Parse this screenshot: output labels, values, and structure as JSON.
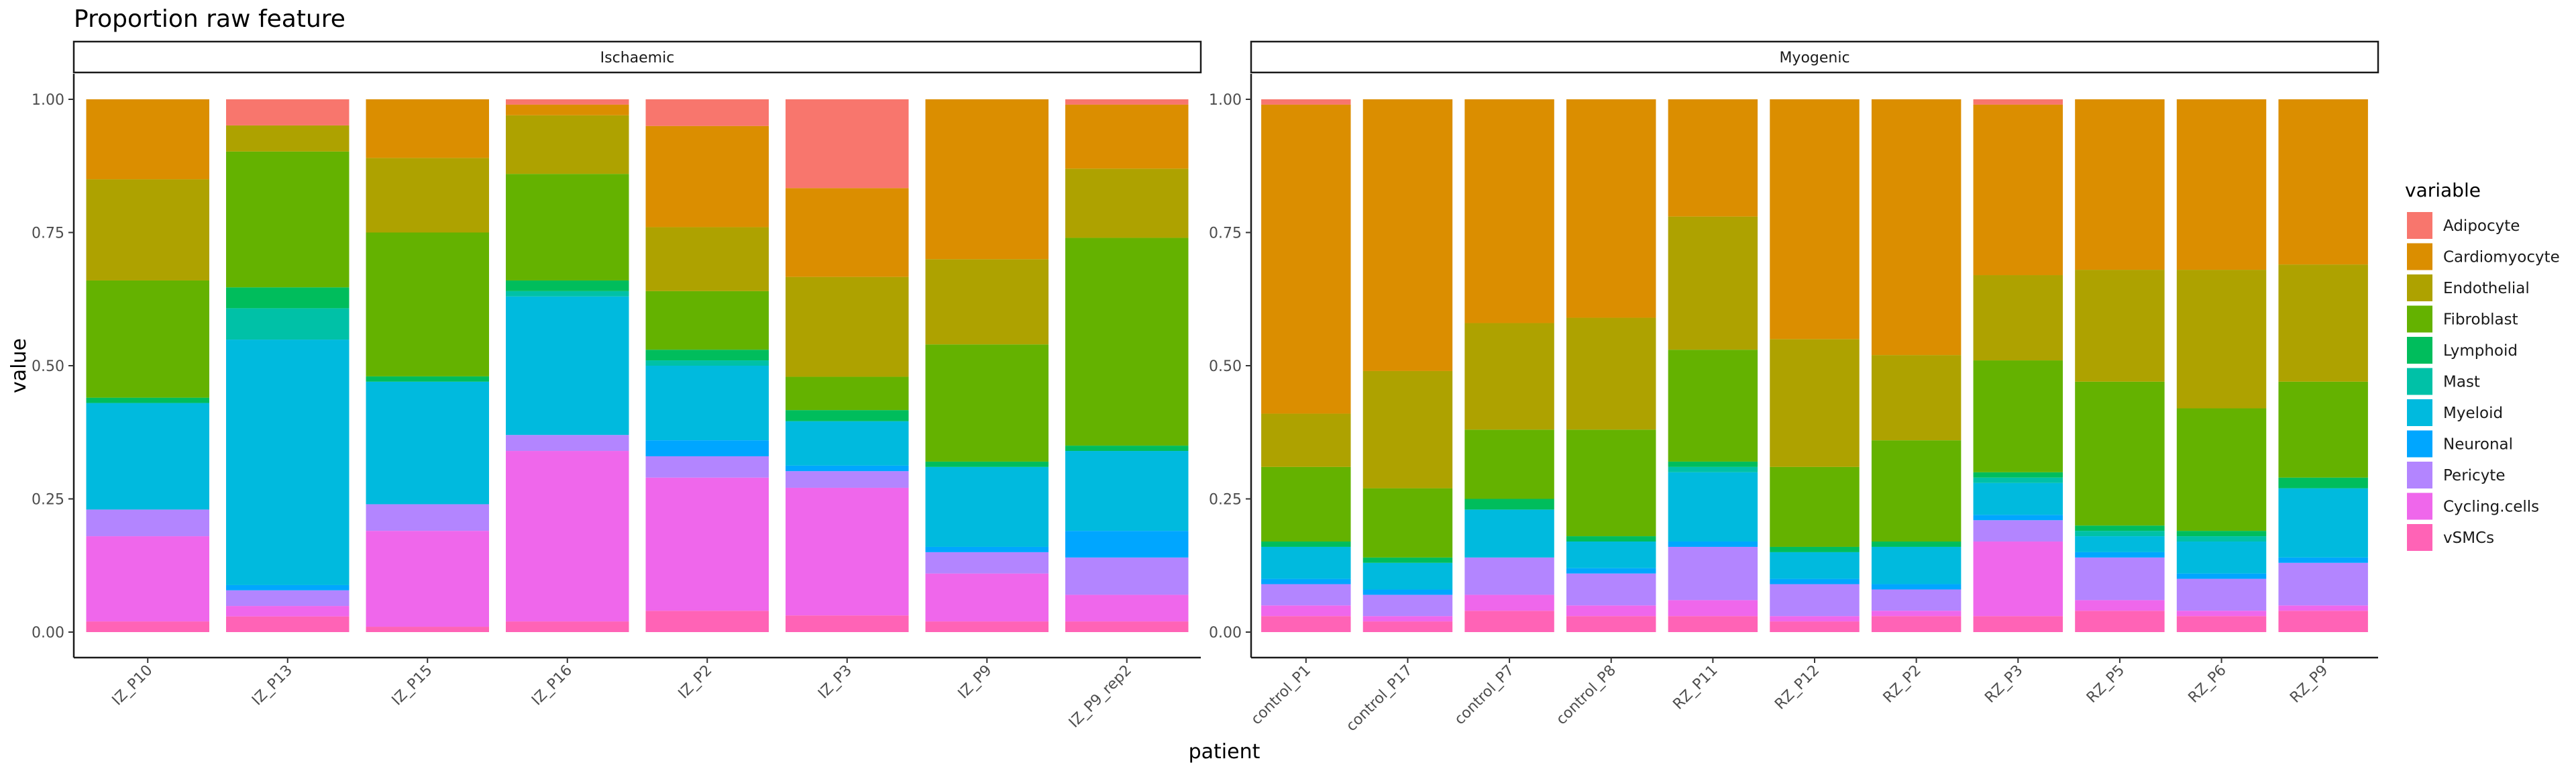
{
  "chart_data": {
    "type": "bar",
    "stacked": true,
    "title": "Proportion raw feature",
    "xlabel": "patient",
    "ylabel": "value",
    "ylim": [
      0,
      1
    ],
    "yticks": [
      "0.00",
      "0.25",
      "0.50",
      "0.75",
      "1.00"
    ],
    "legend_title": "variable",
    "legend_position": "right",
    "grid": false,
    "variables": [
      "Adipocyte",
      "Cardiomyocyte",
      "Endothelial",
      "Fibroblast",
      "Lymphoid",
      "Mast",
      "Myeloid",
      "Neuronal",
      "Pericyte",
      "Cycling.cells",
      "vSMCs"
    ],
    "colors": {
      "Adipocyte": "#F8766D",
      "Cardiomyocyte": "#DB8E00",
      "Endothelial": "#AEA200",
      "Fibroblast": "#64B200",
      "Lymphoid": "#00BD5C",
      "Mast": "#00C1A7",
      "Myeloid": "#00BADE",
      "Neuronal": "#00A6FF",
      "Pericyte": "#B385FF",
      "Cycling.cells": "#EF67EB",
      "vSMCs": "#FF63B6"
    },
    "panels": [
      {
        "name": "Ischaemic",
        "categories": [
          "IZ_P10",
          "IZ_P13",
          "IZ_P15",
          "IZ_P16",
          "IZ_P2",
          "IZ_P3",
          "IZ_P9",
          "IZ_P9_rep2"
        ],
        "values": {
          "Adipocyte": [
            0.0,
            0.05,
            0.0,
            0.01,
            0.05,
            0.16,
            0.0,
            0.01
          ],
          "Cardiomyocyte": [
            0.15,
            0.0,
            0.11,
            0.02,
            0.19,
            0.16,
            0.3,
            0.12
          ],
          "Endothelial": [
            0.19,
            0.05,
            0.14,
            0.11,
            0.12,
            0.18,
            0.16,
            0.13
          ],
          "Fibroblast": [
            0.22,
            0.26,
            0.27,
            0.2,
            0.11,
            0.06,
            0.22,
            0.39
          ],
          "Lymphoid": [
            0.01,
            0.04,
            0.01,
            0.02,
            0.02,
            0.02,
            0.01,
            0.01
          ],
          "Mast": [
            0.0,
            0.06,
            0.0,
            0.01,
            0.01,
            0.0,
            0.0,
            0.0
          ],
          "Myeloid": [
            0.2,
            0.47,
            0.23,
            0.26,
            0.14,
            0.08,
            0.15,
            0.15
          ],
          "Neuronal": [
            0.0,
            0.01,
            0.0,
            0.0,
            0.03,
            0.01,
            0.01,
            0.05
          ],
          "Pericyte": [
            0.05,
            0.03,
            0.05,
            0.03,
            0.04,
            0.03,
            0.04,
            0.07
          ],
          "Cycling.cells": [
            0.16,
            0.02,
            0.18,
            0.32,
            0.25,
            0.23,
            0.09,
            0.05
          ],
          "vSMCs": [
            0.02,
            0.03,
            0.01,
            0.02,
            0.04,
            0.03,
            0.02,
            0.02
          ]
        }
      },
      {
        "name": "Myogenic",
        "categories": [
          "control_P1",
          "control_P17",
          "control_P7",
          "control_P8",
          "RZ_P11",
          "RZ_P12",
          "RZ_P2",
          "RZ_P3",
          "RZ_P5",
          "RZ_P6",
          "RZ_P9"
        ],
        "values": {
          "Adipocyte": [
            0.01,
            0.0,
            0.0,
            0.0,
            0.0,
            0.0,
            0.0,
            0.01,
            0.0,
            0.0,
            0.0
          ],
          "Cardiomyocyte": [
            0.58,
            0.51,
            0.42,
            0.41,
            0.22,
            0.45,
            0.48,
            0.32,
            0.32,
            0.32,
            0.31
          ],
          "Endothelial": [
            0.1,
            0.22,
            0.2,
            0.21,
            0.25,
            0.24,
            0.16,
            0.16,
            0.21,
            0.26,
            0.22
          ],
          "Fibroblast": [
            0.14,
            0.13,
            0.13,
            0.2,
            0.21,
            0.15,
            0.19,
            0.21,
            0.27,
            0.23,
            0.18
          ],
          "Lymphoid": [
            0.01,
            0.01,
            0.02,
            0.01,
            0.01,
            0.01,
            0.01,
            0.01,
            0.01,
            0.01,
            0.02
          ],
          "Mast": [
            0.0,
            0.0,
            0.0,
            0.0,
            0.01,
            0.0,
            0.0,
            0.01,
            0.01,
            0.01,
            0.0
          ],
          "Myeloid": [
            0.06,
            0.05,
            0.09,
            0.05,
            0.13,
            0.05,
            0.07,
            0.06,
            0.03,
            0.06,
            0.13
          ],
          "Neuronal": [
            0.01,
            0.01,
            0.0,
            0.01,
            0.01,
            0.01,
            0.01,
            0.01,
            0.01,
            0.01,
            0.01
          ],
          "Pericyte": [
            0.04,
            0.04,
            0.07,
            0.06,
            0.1,
            0.06,
            0.04,
            0.04,
            0.08,
            0.06,
            0.08
          ],
          "Cycling.cells": [
            0.02,
            0.01,
            0.03,
            0.02,
            0.03,
            0.01,
            0.01,
            0.14,
            0.02,
            0.01,
            0.01
          ],
          "vSMCs": [
            0.03,
            0.02,
            0.04,
            0.03,
            0.03,
            0.02,
            0.03,
            0.03,
            0.04,
            0.03,
            0.04
          ]
        }
      }
    ]
  }
}
